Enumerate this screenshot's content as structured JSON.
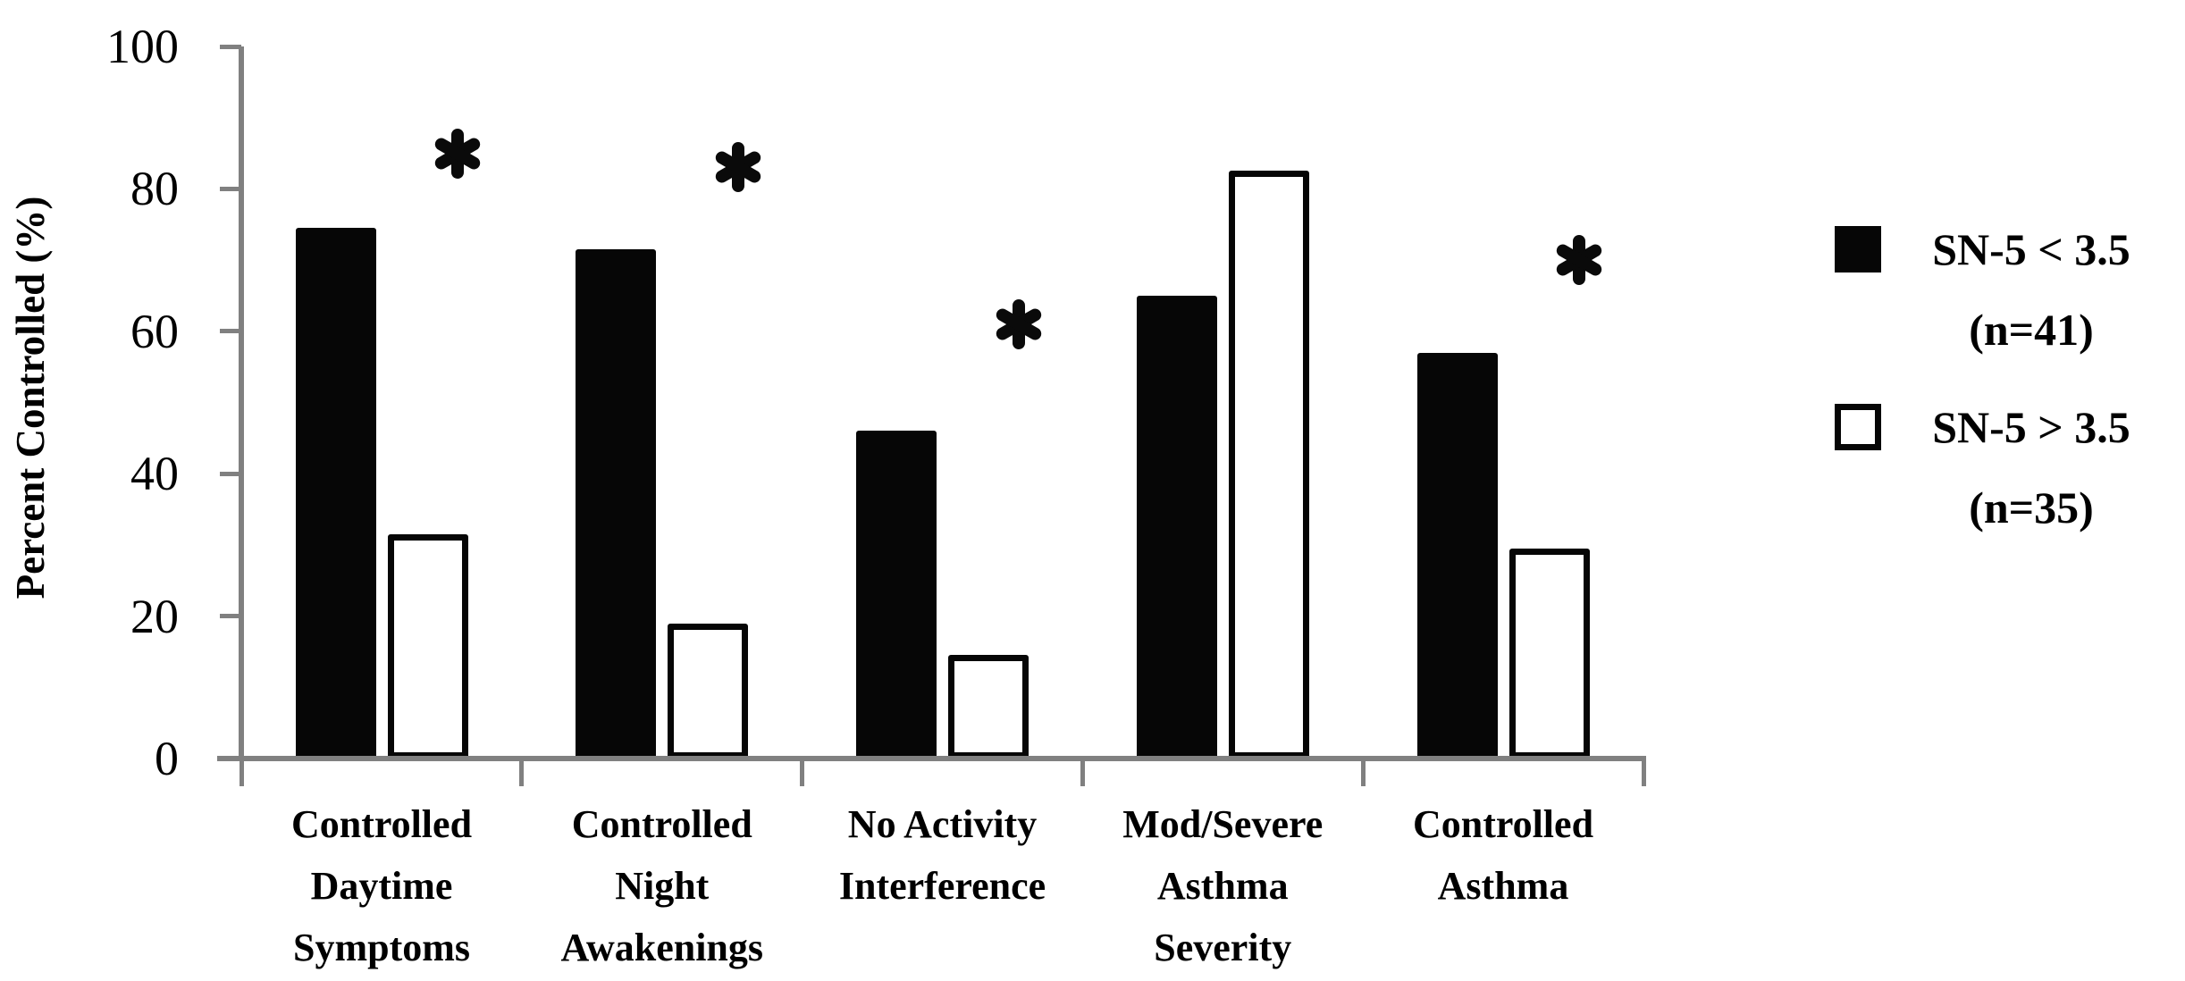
{
  "chart_data": {
    "type": "bar",
    "title": "",
    "ylabel": "Percent Controlled (%)",
    "xlabel": "",
    "ylim": [
      0,
      100
    ],
    "yticks": [
      0,
      20,
      40,
      60,
      80,
      100
    ],
    "grid": false,
    "legend_position": "right",
    "axis_color": "#808080",
    "bar_fill_color": "#060606",
    "bar_hollow_color": "#ffffff",
    "text_color": "#000000",
    "categories": [
      "Controlled Daytime Symptoms",
      "Controlled Night Awakenings",
      "No Activity Interference",
      "Mod/Severe Asthma Severity",
      "Controlled Asthma"
    ],
    "category_label_lines": [
      [
        "Controlled",
        "Daytime",
        "Symptoms"
      ],
      [
        "Controlled",
        "Night",
        "Awakenings"
      ],
      [
        "No Activity",
        "Interference"
      ],
      [
        "Mod/Severe",
        "Asthma",
        "Severity"
      ],
      [
        "Controlled",
        "Asthma"
      ]
    ],
    "series": [
      {
        "name": "SN-5 < 3.5 (n=41)",
        "legend_lines": [
          "SN-5 < 3.5",
          "(n=41)"
        ],
        "style": "filled",
        "values": [
          74.5,
          71.5,
          46,
          65,
          57
        ]
      },
      {
        "name": "SN-5 > 3.5 (n=35)",
        "legend_lines": [
          "SN-5 > 3.5",
          "(n=35)"
        ],
        "style": "hollow",
        "values": [
          31.5,
          19,
          14.5,
          82.5,
          29.5
        ]
      }
    ],
    "annotations": [
      {
        "symbol": "*",
        "meaning": "significant",
        "category_index": 0,
        "y": 85
      },
      {
        "symbol": "*",
        "meaning": "significant",
        "category_index": 1,
        "y": 83
      },
      {
        "symbol": "*",
        "meaning": "significant",
        "category_index": 2,
        "y": 61
      },
      {
        "symbol": "*",
        "meaning": "significant",
        "category_index": 4,
        "y": 70
      }
    ]
  }
}
